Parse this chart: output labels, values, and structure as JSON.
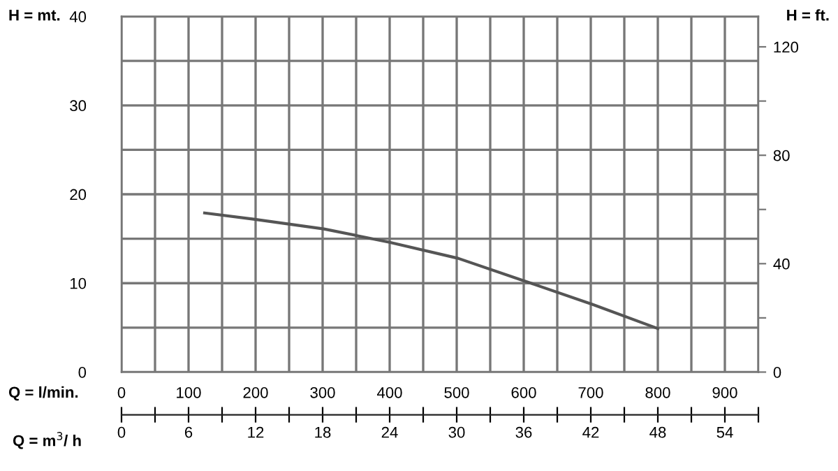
{
  "chart_data": {
    "type": "line",
    "ylabel": "H = mt.",
    "y2label": "H = ft.",
    "xlabel": "Q = l/min.",
    "x2label": "Q = m$^{3}$/ h",
    "xlim": [
      0,
      950
    ],
    "ylim": [
      0,
      40
    ],
    "y2lim": [
      0,
      131.2
    ],
    "x2lim": [
      0,
      57
    ],
    "xticks": [
      0,
      {
        "value": 50,
        "label": null
      },
      100,
      {
        "value": 150,
        "label": null
      },
      200,
      {
        "value": 250,
        "label": null
      },
      300,
      {
        "value": 350,
        "label": null
      },
      400,
      {
        "value": 450,
        "label": null
      },
      500,
      {
        "value": 550,
        "label": null
      },
      600,
      {
        "value": 650,
        "label": null
      },
      700,
      {
        "value": 750,
        "label": null
      },
      800,
      {
        "value": 850,
        "label": null
      },
      900,
      {
        "value": 950,
        "label": null
      }
    ],
    "x2ticks": [
      0,
      6,
      12,
      18,
      24,
      30,
      36,
      42,
      48,
      54
    ],
    "yticks": [
      0,
      {
        "value": 5,
        "label": null
      },
      10,
      {
        "value": 15,
        "label": null
      },
      20,
      {
        "value": 25,
        "label": null
      },
      30,
      {
        "value": 35,
        "label": null
      },
      40
    ],
    "y2ticks": [
      0,
      {
        "value": 20,
        "label": null
      },
      40,
      {
        "value": 60,
        "label": null
      },
      80,
      {
        "value": 100,
        "label": null
      },
      120
    ],
    "grid": true,
    "marker": "none",
    "line_style": "solid",
    "series": [
      {
        "color": "#555555",
        "x": [
          124,
          197,
          302,
          400,
          502,
          603,
          703,
          800
        ],
        "values": [
          17.9,
          17.2,
          16.1,
          14.6,
          12.8,
          10.2,
          7.6,
          4.9
        ]
      }
    ]
  }
}
